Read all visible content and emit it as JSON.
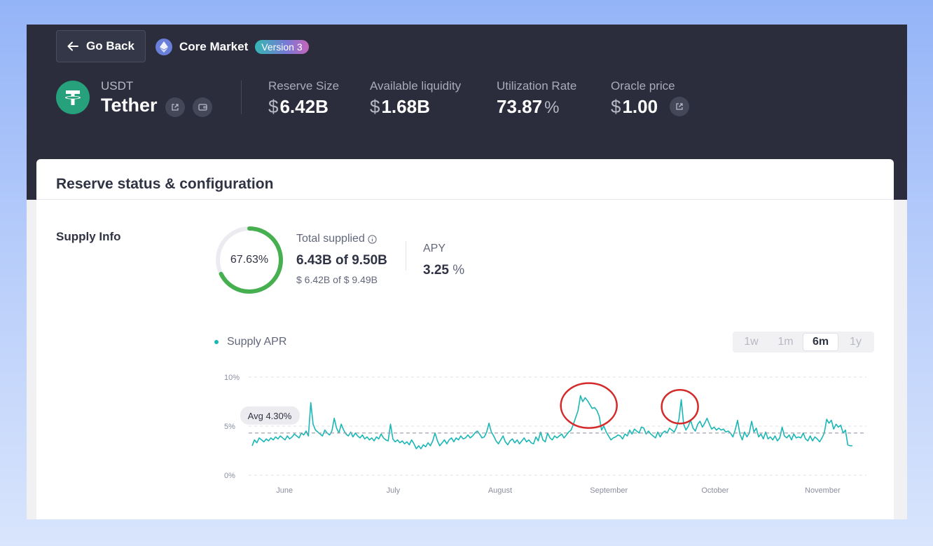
{
  "header": {
    "go_back_label": "Go Back",
    "market_name": "Core Market",
    "version_badge": "Version 3"
  },
  "token": {
    "symbol": "USDT",
    "name": "Tether"
  },
  "stats": {
    "reserve_size": {
      "label": "Reserve Size",
      "currency": "$",
      "value": "6.42B"
    },
    "available_liquidity": {
      "label": "Available liquidity",
      "currency": "$",
      "value": "1.68B"
    },
    "utilization_rate": {
      "label": "Utilization Rate",
      "value": "73.87",
      "unit": "%"
    },
    "oracle_price": {
      "label": "Oracle price",
      "currency": "$",
      "value": "1.00"
    }
  },
  "card": {
    "title": "Reserve status & configuration",
    "supply_info": {
      "section_label": "Supply Info",
      "ring_percent_label": "67.63%",
      "ring_fraction": 0.6763,
      "total_supplied_label": "Total supplied",
      "total_supplied_value": "6.43B of 9.50B",
      "total_supplied_usd": "$ 6.42B of $ 9.49B",
      "apy_label": "APY",
      "apy_value": "3.25",
      "apy_unit": "%"
    }
  },
  "range_buttons": [
    "1w",
    "1m",
    "6m",
    "1y"
  ],
  "range_selected": "6m",
  "colors": {
    "accent": "#1bb6b6",
    "ring": "#46af4f",
    "header_bg": "#2b2d3c",
    "highlight_circle": "#d42a2a"
  },
  "chart_data": {
    "type": "line",
    "series": [
      {
        "name": "Supply APR",
        "values": [
          3.0,
          3.6,
          3.3,
          3.8,
          3.6,
          3.4,
          3.7,
          3.5,
          3.8,
          3.6,
          3.9,
          3.7,
          4.0,
          3.8,
          3.6,
          4.0,
          3.7,
          3.9,
          4.2,
          4.0,
          3.8,
          4.3,
          4.1,
          4.5,
          4.0,
          7.4,
          5.2,
          4.6,
          4.4,
          4.2,
          4.0,
          4.6,
          4.3,
          4.1,
          4.5,
          5.8,
          4.8,
          4.3,
          5.2,
          4.6,
          4.2,
          4.0,
          4.4,
          3.9,
          4.3,
          4.0,
          3.8,
          4.1,
          3.7,
          3.9,
          3.6,
          3.8,
          3.5,
          3.9,
          3.7,
          4.2,
          3.8,
          3.6,
          3.5,
          5.2,
          3.7,
          3.4,
          3.6,
          3.3,
          3.5,
          3.2,
          3.4,
          3.1,
          3.6,
          3.2,
          2.7,
          3.0,
          2.7,
          3.1,
          2.9,
          3.3,
          3.0,
          3.5,
          4.3,
          3.5,
          3.0,
          3.3,
          3.6,
          3.2,
          3.6,
          3.8,
          3.4,
          3.8,
          3.6,
          4.0,
          3.7,
          3.8,
          4.1,
          3.8,
          4.0,
          4.3,
          4.5,
          4.2,
          3.8,
          3.9,
          4.4,
          5.3,
          4.4,
          4.0,
          3.5,
          3.2,
          3.6,
          4.0,
          3.4,
          3.1,
          3.5,
          3.7,
          3.3,
          3.6,
          3.2,
          3.5,
          3.8,
          3.4,
          3.6,
          3.3,
          3.2,
          3.9,
          3.5,
          4.4,
          3.6,
          3.4,
          4.3,
          3.8,
          3.6,
          4.0,
          3.8,
          4.0,
          4.2,
          3.8,
          4.1,
          4.4,
          4.6,
          5.2,
          5.9,
          6.6,
          8.1,
          7.5,
          7.9,
          7.6,
          7.2,
          6.8,
          6.9,
          6.6,
          6.0,
          4.6,
          5.0,
          4.4,
          4.0,
          3.6,
          3.8,
          3.9,
          4.1,
          4.0,
          3.7,
          4.2,
          4.0,
          4.6,
          4.2,
          4.7,
          4.5,
          4.3,
          4.9,
          4.8,
          4.2,
          4.5,
          4.2,
          4.0,
          3.8,
          4.4,
          3.9,
          4.3,
          4.5,
          4.3,
          4.8,
          4.6,
          4.4,
          4.9,
          5.7,
          7.7,
          5.2,
          4.6,
          5.0,
          5.6,
          4.8,
          4.5,
          5.2,
          5.5,
          4.9,
          5.3,
          5.8,
          5.2,
          4.7,
          4.9,
          4.6,
          4.8,
          4.6,
          4.7,
          4.4,
          4.5,
          4.3,
          3.9,
          4.6,
          5.6,
          4.2,
          3.6,
          4.4,
          3.9,
          4.3,
          5.5,
          4.4,
          4.8,
          3.9,
          4.2,
          3.7,
          4.4,
          3.7,
          3.9,
          3.6,
          4.0,
          3.5,
          3.8,
          4.9,
          4.0,
          3.8,
          4.1,
          3.6,
          4.2,
          3.8,
          3.9,
          3.8,
          4.3,
          3.7,
          3.5,
          4.0,
          3.5,
          3.9,
          3.7,
          3.4,
          3.8,
          4.3,
          5.7,
          5.3,
          5.6,
          4.7,
          5.2,
          4.9,
          5.1,
          4.3,
          4.6,
          3.1,
          3.0,
          3.0
        ]
      }
    ],
    "x_tick_labels": [
      "June",
      "July",
      "August",
      "September",
      "October",
      "November"
    ],
    "y_tick_labels": [
      "10%",
      "5%",
      "0%"
    ],
    "ylim": [
      0,
      10
    ],
    "average": {
      "label": "Avg 4.30%",
      "value": 4.3
    },
    "grid": true,
    "legend_position": "top-left"
  }
}
